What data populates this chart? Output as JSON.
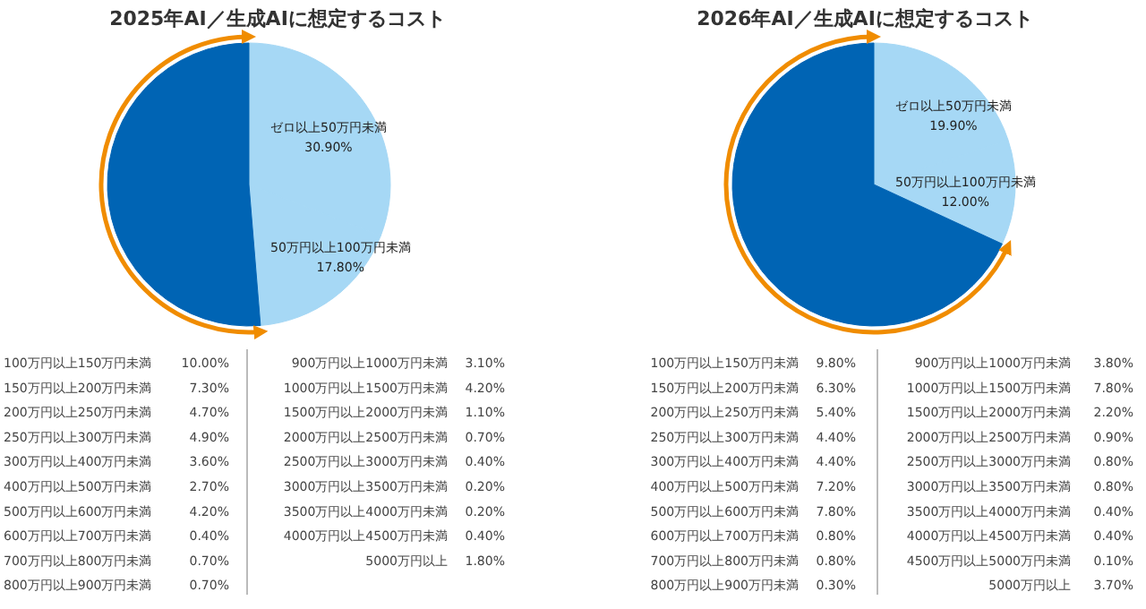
{
  "chart_data": [
    {
      "type": "pie",
      "title": "2025年AI／生成AIに想定するコスト",
      "categories": [
        "ゼロ以上50万円未満",
        "50万円以上100万円未満",
        null
      ],
      "values": [
        30.9,
        17.8,
        51.3
      ],
      "value_labels": [
        "30.90%",
        "17.80%",
        null
      ],
      "colors": [
        "#a6d8f5",
        "#a6d8f5",
        "#0064b4"
      ],
      "annotations": [
        "100万円以上150万円未満",
        "10.00%",
        "150万円以上200万円未満",
        "7.30%",
        "200万円以上250万円未満",
        "4.70%",
        "250万円以上300万円未満",
        "4.90%",
        "300万円以上400万円未満",
        "3.60%",
        "400万円以上500万円未満",
        "2.70%",
        "500万円以上600万円未満",
        "4.20%",
        "600万円以上700万円未満",
        "0.40%",
        "700万円以上800万円未満",
        "0.70%",
        "800万円以上900万円未満",
        "0.70%",
        "900万円以上1000万円未満",
        "3.10%",
        "1000万円以上1500万円未満",
        "4.20%",
        "1500万円以上2000万円未満",
        "1.10%",
        "2000万円以上2500万円未満",
        "0.70%",
        "2500万円以上3000万円未満",
        "0.40%",
        "3000万円以上3500万円未満",
        "0.20%",
        "3500万円以上4000万円未満",
        "0.20%",
        "4000万円以上4500万円未満",
        "0.40%",
        "5000万円以上",
        "1.80%"
      ]
    },
    {
      "type": "pie",
      "title": "2026年AI／生成AIに想定するコスト",
      "categories": [
        "ゼロ以上50万円未満",
        "50万円以上100万円未満",
        null
      ],
      "values": [
        19.9,
        12.0,
        68.1
      ],
      "value_labels": [
        "19.90%",
        "12.00%",
        null
      ],
      "colors": [
        "#a6d8f5",
        "#a6d8f5",
        "#0064b4"
      ],
      "annotations": [
        "100万円以上150万円未満",
        "9.80%",
        "150万円以上200万円未満",
        "6.30%",
        "200万円以上250万円未満",
        "5.40%",
        "250万円以上300万円未満",
        "4.40%",
        "300万円以上400万円未満",
        "4.40%",
        "400万円以上500万円未満",
        "7.20%",
        "500万円以上600万円未満",
        "7.80%",
        "600万円以上700万円未満",
        "0.80%",
        "700万円以上800万円未満",
        "0.80%",
        "800万円以上900万円未満",
        "0.30%",
        "900万円以上1000万円未満",
        "3.80%",
        "1000万円以上1500万円未満",
        "7.80%",
        "1500万円以上2000万円未満",
        "2.20%",
        "2000万円以上2500万円未満",
        "0.90%",
        "2500万円以上3000万円未満",
        "0.80%",
        "3000万円以上3500万円未満",
        "0.80%",
        "3500万円以上4000万円未満",
        "0.40%",
        "4000万円以上4500万円未満",
        "0.40%",
        "4500万円以上5000万円未満",
        "0.10%",
        "5000万円以上",
        "3.70%"
      ]
    }
  ]
}
